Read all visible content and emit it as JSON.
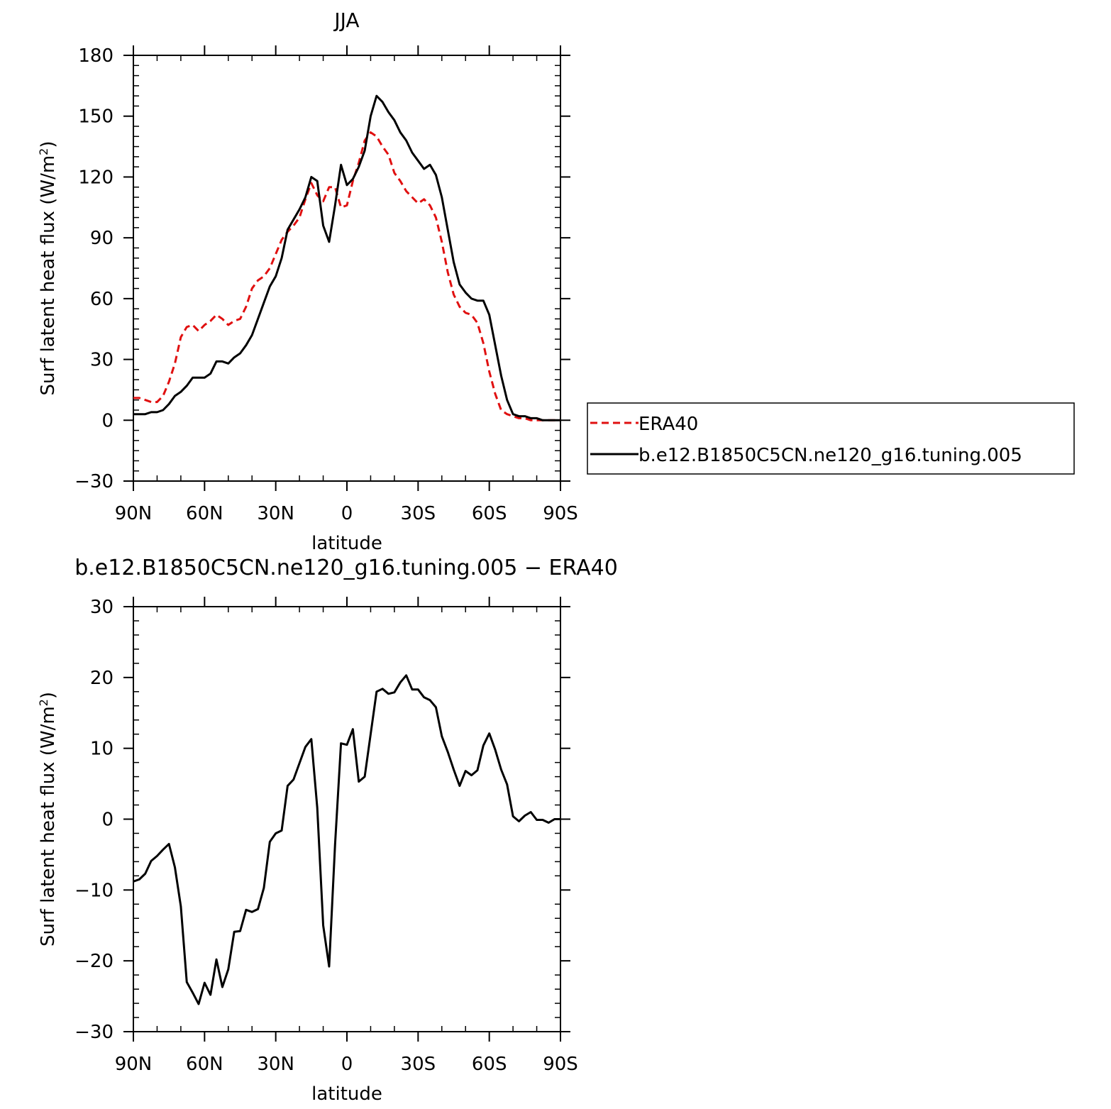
{
  "chart_data": [
    {
      "type": "line",
      "title": "JJA",
      "xlabel": "latitude",
      "ylabel": "Surf latent heat flux (W/m",
      "ylabel_sup": "2",
      "ylabel_close": ")",
      "xlim": [
        90,
        -90
      ],
      "ylim": [
        -30,
        180
      ],
      "yticks": [
        -30,
        0,
        30,
        60,
        90,
        120,
        150,
        180
      ],
      "ytick_labels": [
        "−30",
        "0",
        "30",
        "60",
        "90",
        "120",
        "150",
        "180"
      ],
      "xticks": [
        90,
        60,
        30,
        0,
        -30,
        -60,
        -90
      ],
      "xtick_labels": [
        "90N",
        "60N",
        "30N",
        "0",
        "30S",
        "60S",
        "90S"
      ],
      "legend": "right",
      "series": [
        {
          "name": "ERA40",
          "color": "#e01010",
          "dash": "dashed",
          "x": [
            90,
            87.5,
            85,
            82.5,
            80,
            77.5,
            75,
            72.5,
            70,
            67.5,
            65,
            62.5,
            60,
            57.5,
            55,
            52.5,
            50,
            47.5,
            45,
            42.5,
            40,
            37.5,
            35,
            32.5,
            30,
            27.5,
            25,
            22.5,
            20,
            17.5,
            15,
            12.5,
            10,
            7.5,
            5,
            2.5,
            0,
            -2.5,
            -5,
            -7.5,
            -10,
            -12.5,
            -15,
            -17.5,
            -20,
            -22.5,
            -25,
            -27.5,
            -30,
            -32.5,
            -35,
            -37.5,
            -40,
            -42.5,
            -45,
            -47.5,
            -50,
            -52.5,
            -55,
            -57.5,
            -60,
            -62.5,
            -65,
            -67.5,
            -70,
            -72.5,
            -75,
            -77.5,
            -80,
            -82.5,
            -85,
            -87.5,
            -90
          ],
          "values": [
            11,
            11,
            10,
            9,
            9,
            12,
            19,
            28,
            41,
            46,
            47,
            44,
            47,
            49,
            52,
            50,
            47,
            49,
            50,
            56,
            65,
            69,
            71,
            75,
            82,
            89,
            93,
            96,
            100,
            109,
            117,
            111,
            108,
            115,
            115,
            105,
            106,
            118,
            127,
            138,
            142,
            140,
            135,
            131,
            122,
            118,
            113,
            110,
            107,
            109,
            106,
            100,
            88,
            73,
            62,
            56,
            53,
            52,
            48,
            38,
            24,
            13,
            5,
            3,
            2,
            1,
            1,
            0,
            0,
            0,
            0,
            0,
            0
          ]
        },
        {
          "name": "b.e12.B1850C5CN.ne120_g16.tuning.005",
          "color": "#000000",
          "dash": "solid",
          "x": [
            90,
            87.5,
            85,
            82.5,
            80,
            77.5,
            75,
            72.5,
            70,
            67.5,
            65,
            62.5,
            60,
            57.5,
            55,
            52.5,
            50,
            47.5,
            45,
            42.5,
            40,
            37.5,
            35,
            32.5,
            30,
            27.5,
            25,
            22.5,
            20,
            17.5,
            15,
            12.5,
            10,
            7.5,
            5,
            2.5,
            0,
            -2.5,
            -5,
            -7.5,
            -10,
            -12.5,
            -15,
            -17.5,
            -20,
            -22.5,
            -25,
            -27.5,
            -30,
            -32.5,
            -35,
            -37.5,
            -40,
            -42.5,
            -45,
            -47.5,
            -50,
            -52.5,
            -55,
            -57.5,
            -60,
            -62.5,
            -65,
            -67.5,
            -70,
            -72.5,
            -75,
            -77.5,
            -80,
            -82.5,
            -85,
            -87.5,
            -90
          ],
          "values": [
            3,
            3,
            3,
            4,
            4,
            5,
            8,
            12,
            14,
            17,
            21,
            21,
            21,
            23,
            29,
            29,
            28,
            31,
            33,
            37,
            42,
            50,
            58,
            66,
            71,
            80,
            94,
            99,
            104,
            110,
            120,
            118,
            96,
            88,
            106,
            126,
            116,
            119,
            125,
            133,
            150,
            160,
            157,
            152,
            148,
            142,
            138,
            132,
            128,
            124,
            126,
            121,
            110,
            94,
            78,
            67,
            63,
            60,
            59,
            59,
            52,
            37,
            22,
            10,
            3,
            2,
            2,
            1,
            1,
            0,
            0,
            0,
            0
          ]
        }
      ]
    },
    {
      "type": "line",
      "title": "b.e12.B1850C5CN.ne120_g16.tuning.005 − ERA40",
      "xlabel": "latitude",
      "ylabel": "Surf latent heat flux (W/m",
      "ylabel_sup": "2",
      "ylabel_close": ")",
      "xlim": [
        90,
        -90
      ],
      "ylim": [
        -30,
        30
      ],
      "yticks": [
        -30,
        -20,
        -10,
        0,
        10,
        20,
        30
      ],
      "ytick_labels": [
        "−30",
        "−20",
        "−10",
        "0",
        "10",
        "20",
        "30"
      ],
      "xticks": [
        90,
        60,
        30,
        0,
        -30,
        -60,
        -90
      ],
      "xtick_labels": [
        "90N",
        "60N",
        "30N",
        "0",
        "30S",
        "60S",
        "90S"
      ],
      "series": [
        {
          "color": "#000000",
          "dash": "solid",
          "x": [
            90,
            87.5,
            85,
            82.5,
            80,
            77.5,
            75,
            72.5,
            70,
            67.5,
            65,
            62.5,
            60,
            57.5,
            55,
            52.5,
            50,
            47.5,
            45,
            42.5,
            40,
            37.5,
            35,
            32.5,
            30,
            27.5,
            25,
            22.5,
            20,
            17.5,
            15,
            12.5,
            10,
            7.5,
            5,
            2.5,
            0,
            -2.5,
            -5,
            -7.5,
            -10,
            -12.5,
            -15,
            -17.5,
            -20,
            -22.5,
            -25,
            -27.5,
            -30,
            -32.5,
            -35,
            -37.5,
            -40,
            -42.5,
            -45,
            -47.5,
            -50,
            -52.5,
            -55,
            -57.5,
            -60,
            -62.5,
            -65,
            -67.5,
            -70,
            -72.5,
            -75,
            -77.5,
            -80,
            -82.5,
            -85,
            -87.5,
            -90
          ],
          "values": [
            -8.8,
            -8.5,
            -7.7,
            -5.9,
            -5.2,
            -4.3,
            -3.5,
            -6.8,
            -12.3,
            -23,
            -24.5,
            -26.1,
            -23.1,
            -24.8,
            -19.8,
            -23.7,
            -21.2,
            -15.9,
            -15.8,
            -12.8,
            -13.1,
            -12.7,
            -9.7,
            -3.2,
            -2,
            -1.6,
            4.7,
            5.6,
            7.9,
            10.2,
            11.3,
            1.6,
            -15,
            -20.8,
            -3.6,
            10.7,
            10.5,
            12.7,
            5.3,
            6,
            12,
            18,
            18.4,
            17.7,
            17.9,
            19.3,
            20.3,
            18.3,
            18.3,
            17.2,
            16.8,
            15.8,
            11.7,
            9.5,
            7,
            4.7,
            6.8,
            6.2,
            6.9,
            10.4,
            12.1,
            9.8,
            7,
            4.9,
            0.4,
            -0.3,
            0.5,
            1,
            -0.1,
            -0.1,
            -0.5,
            0,
            0
          ]
        }
      ]
    }
  ]
}
